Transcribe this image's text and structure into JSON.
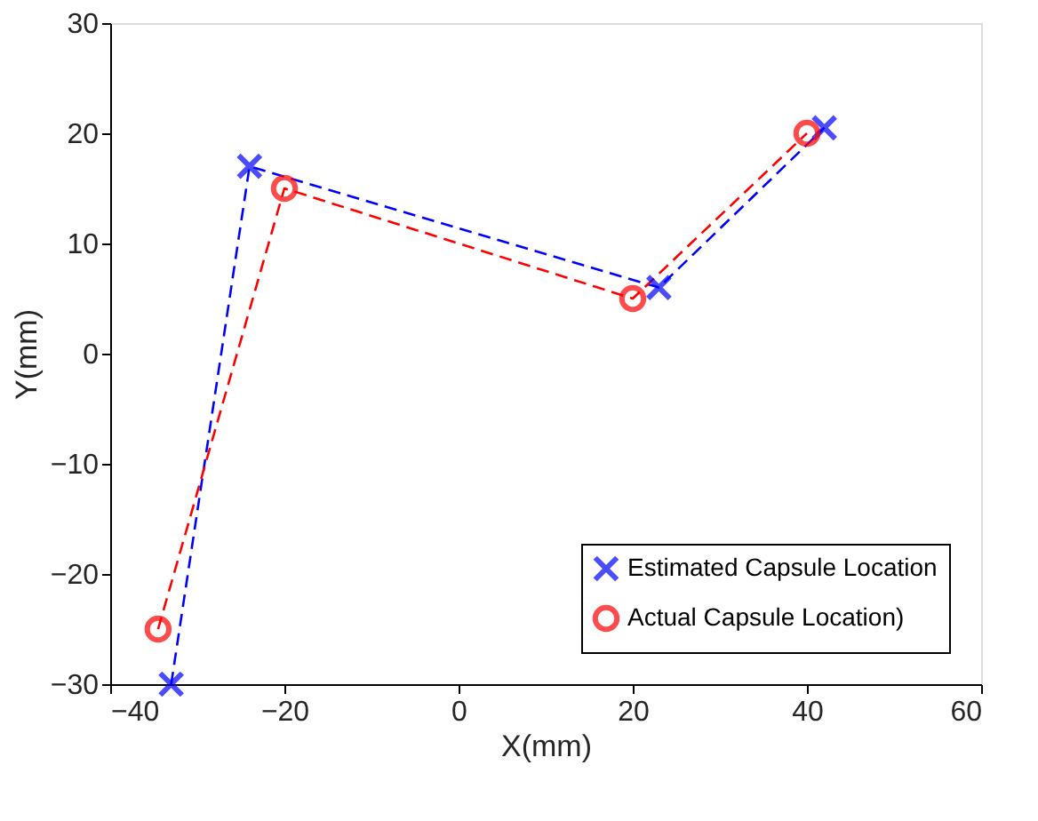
{
  "chart_data": {
    "type": "line",
    "xlabel": "X(mm)",
    "ylabel": "Y(mm)",
    "xlim": [
      -40,
      60
    ],
    "xticks": [
      -40,
      -20,
      0,
      20,
      40,
      60
    ],
    "ylim": [
      -30,
      30
    ],
    "yticks": [
      -30,
      -20,
      -10,
      0,
      10,
      20,
      30
    ],
    "grid": false,
    "legend": "bottom right",
    "line_style": "dashed",
    "series": [
      {
        "name": "Estimated Capsule Location",
        "color": "#0000ff",
        "marker": "cross",
        "x": [
          -33,
          -24,
          23,
          42
        ],
        "values": [
          -30,
          17,
          6,
          20.5
        ]
      },
      {
        "name": "Actual Capsule Location)",
        "color": "#ff0000",
        "marker": "circle",
        "x": [
          -34.5,
          -20,
          20,
          40
        ],
        "values": [
          -25,
          15,
          5,
          20
        ]
      }
    ]
  }
}
